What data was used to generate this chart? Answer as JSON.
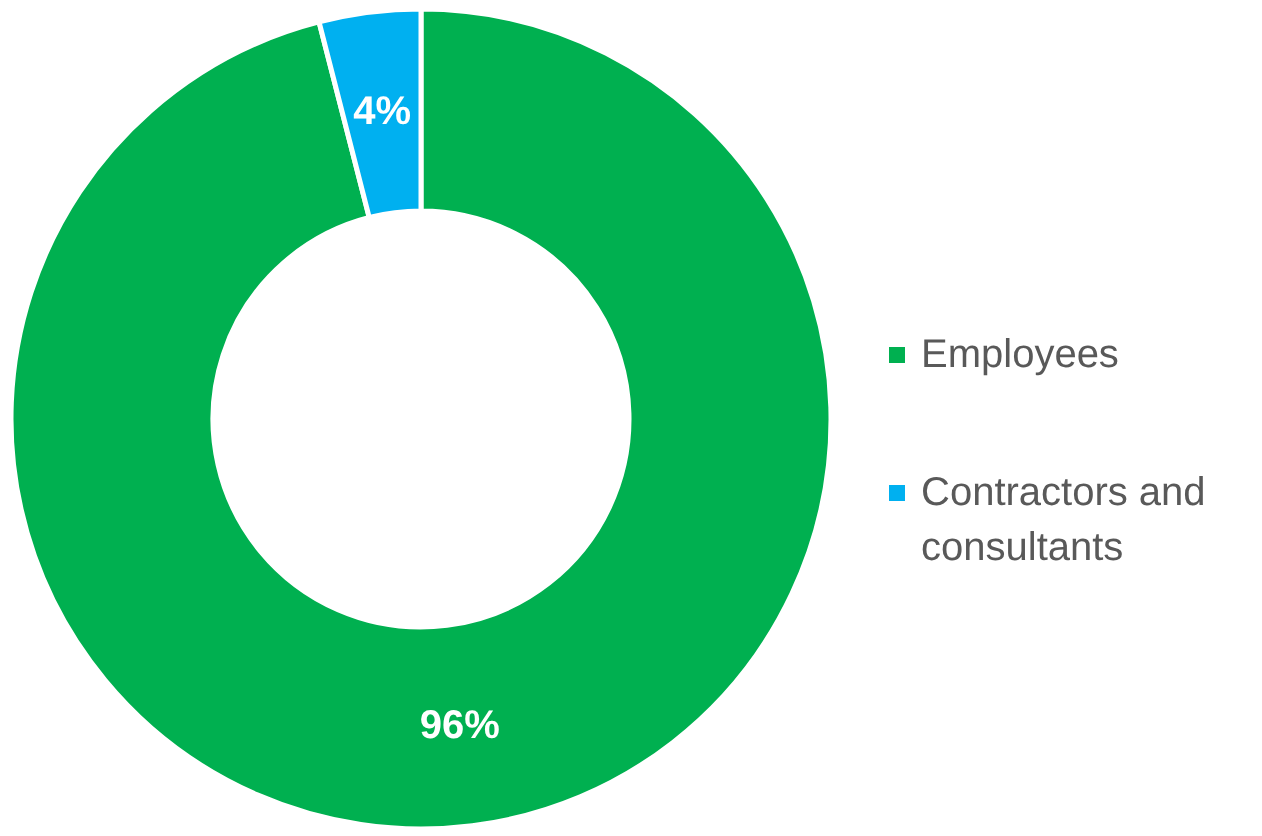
{
  "chart_data": {
    "type": "donut",
    "categories": [
      "Employees",
      "Contractors and consultants"
    ],
    "values": [
      96,
      4
    ],
    "colors": [
      "#00b050",
      "#00b0f0"
    ],
    "value_labels": [
      "96%",
      "4%"
    ],
    "legend": "right"
  }
}
